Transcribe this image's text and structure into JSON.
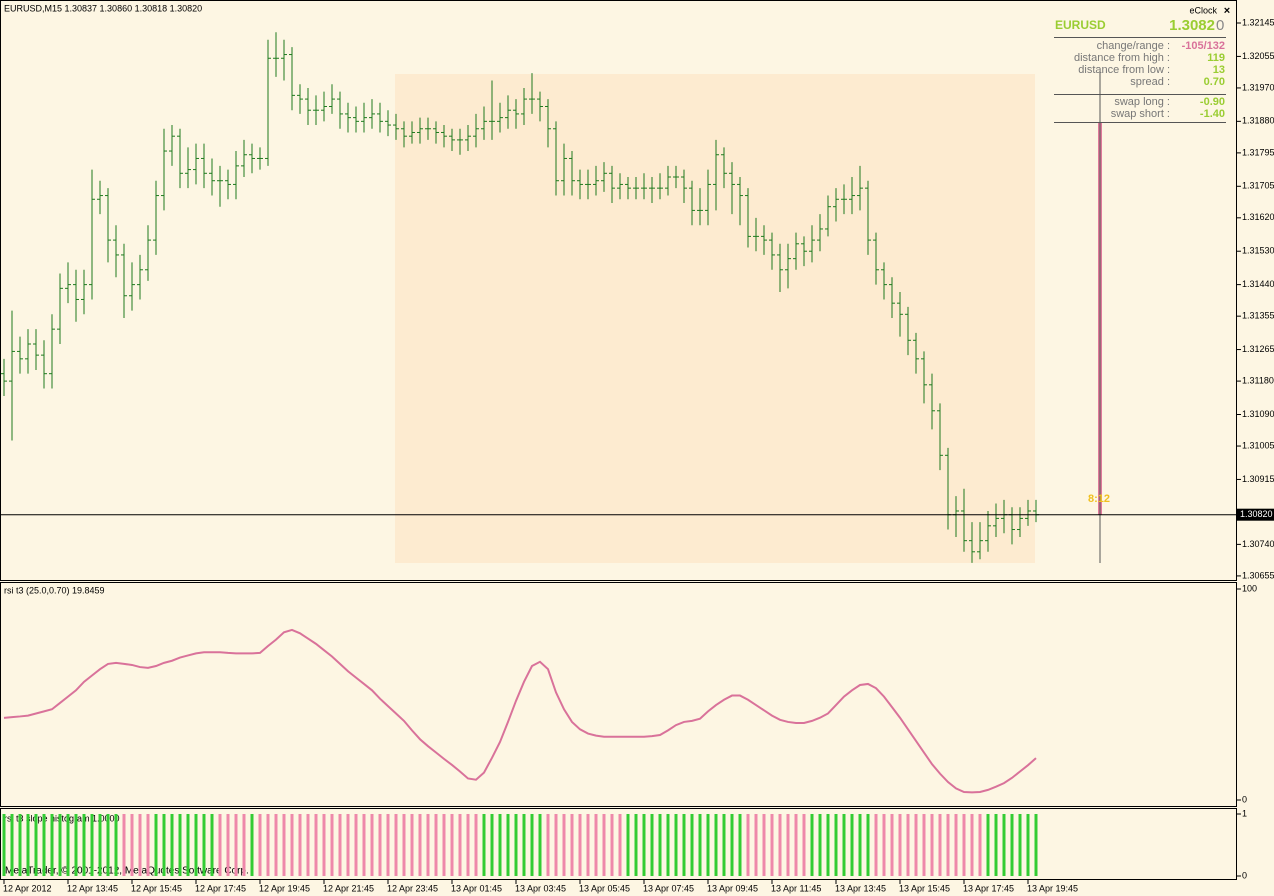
{
  "chart_data": [
    {
      "type": "ohlc",
      "title": "EURUSD,M15  1.30837 1.30860 1.30818 1.30820",
      "color": "#1e7a1e",
      "categories": [
        "12 Apr 2012",
        null,
        null,
        null,
        null,
        null,
        null,
        null,
        "12 Apr 13:45",
        null,
        null,
        null,
        null,
        null,
        null,
        null,
        "12 Apr 15:45",
        null,
        null,
        null,
        null,
        null,
        null,
        null,
        "12 Apr 17:45",
        null,
        null,
        null,
        null,
        null,
        null,
        null,
        "12 Apr 19:45",
        null,
        null,
        null,
        null,
        null,
        null,
        null,
        "12 Apr 21:45",
        null,
        null,
        null,
        null,
        null,
        null,
        null,
        "12 Apr 23:45",
        null,
        null,
        null,
        null,
        null,
        null,
        null,
        "13 Apr 01:45",
        null,
        null,
        null,
        null,
        null,
        null,
        null,
        "13 Apr 03:45",
        null,
        null,
        null,
        null,
        null,
        null,
        null,
        "13 Apr 05:45",
        null,
        null,
        null,
        null,
        null,
        null,
        null,
        "13 Apr 07:45",
        null,
        null,
        null,
        null,
        null,
        null,
        null,
        "13 Apr 09:45",
        null,
        null,
        null,
        null,
        null,
        null,
        null,
        "13 Apr 11:45",
        null,
        null,
        null,
        null,
        null,
        null,
        null,
        "13 Apr 13:45",
        null,
        null,
        null,
        null,
        null,
        null,
        null,
        "13 Apr 15:45",
        null,
        null,
        null,
        null,
        null,
        null,
        null,
        "13 Apr 17:45",
        null,
        null,
        null,
        null,
        null,
        null,
        null,
        "13 Apr 19:45",
        null
      ],
      "open": [
        1.312,
        1.3118,
        1.3126,
        1.3124,
        1.3128,
        1.3125,
        1.312,
        1.3132,
        1.3143,
        1.3144,
        1.314,
        1.3144,
        1.3167,
        1.3168,
        1.3156,
        1.3152,
        1.3141,
        1.3144,
        1.3148,
        1.3156,
        1.3168,
        1.318,
        1.3184,
        1.3174,
        1.3175,
        1.3178,
        1.3174,
        1.3172,
        1.3172,
        1.3171,
        1.3176,
        1.3179,
        1.3178,
        1.3178,
        1.3205,
        1.3205,
        1.3206,
        1.3195,
        1.3194,
        1.3191,
        1.3191,
        1.3192,
        1.3194,
        1.319,
        1.3189,
        1.3188,
        1.3189,
        1.319,
        1.3188,
        1.3187,
        1.3186,
        1.3184,
        1.3185,
        1.3186,
        1.3186,
        1.3185,
        1.3184,
        1.3183,
        1.3183,
        1.3184,
        1.3186,
        1.3188,
        1.3188,
        1.3189,
        1.3191,
        1.319,
        1.3194,
        1.3194,
        1.3192,
        1.3186,
        1.3172,
        1.3178,
        1.3172,
        1.3171,
        1.3171,
        1.3172,
        1.3174,
        1.317,
        1.3171,
        1.317,
        1.317,
        1.317,
        1.317,
        1.317,
        1.3173,
        1.3173,
        1.317,
        1.3164,
        1.3164,
        1.3171,
        1.3179,
        1.3174,
        1.3171,
        1.3168,
        1.3157,
        1.3157,
        1.3156,
        1.3152,
        1.3148,
        1.3151,
        1.3155,
        1.3153,
        1.3156,
        1.3159,
        1.3165,
        1.3167,
        1.3167,
        1.3168,
        1.317,
        1.3156,
        1.3148,
        1.3144,
        1.3139,
        1.3136,
        1.3129,
        1.3124,
        1.3117,
        1.311,
        1.3098,
        1.3082,
        1.3083,
        1.3075,
        1.3072,
        1.3075,
        1.3079,
        1.3081,
        1.3082,
        1.3078,
        1.3081,
        1.3083
      ],
      "high": [
        1.3124,
        1.3137,
        1.313,
        1.3132,
        1.3132,
        1.3129,
        1.3136,
        1.3147,
        1.315,
        1.3148,
        1.3148,
        1.3175,
        1.3172,
        1.317,
        1.316,
        1.3155,
        1.315,
        1.3152,
        1.316,
        1.3172,
        1.3186,
        1.3187,
        1.3186,
        1.3181,
        1.3182,
        1.3182,
        1.3178,
        1.3176,
        1.3175,
        1.318,
        1.3183,
        1.3182,
        1.3181,
        1.321,
        1.3212,
        1.321,
        1.3208,
        1.3198,
        1.3197,
        1.3195,
        1.3196,
        1.3198,
        1.3196,
        1.3193,
        1.3192,
        1.3193,
        1.3194,
        1.3193,
        1.3191,
        1.319,
        1.3188,
        1.3188,
        1.3189,
        1.3189,
        1.3188,
        1.3187,
        1.3186,
        1.3186,
        1.3187,
        1.319,
        1.3192,
        1.3199,
        1.3193,
        1.3195,
        1.3194,
        1.3197,
        1.3201,
        1.3196,
        1.3194,
        1.3188,
        1.3182,
        1.318,
        1.3175,
        1.3175,
        1.3176,
        1.3177,
        1.3176,
        1.3174,
        1.3173,
        1.3173,
        1.3174,
        1.3173,
        1.3174,
        1.3176,
        1.3176,
        1.3175,
        1.3172,
        1.317,
        1.3175,
        1.3183,
        1.3181,
        1.3177,
        1.3173,
        1.317,
        1.3162,
        1.316,
        1.3158,
        1.3155,
        1.3155,
        1.3158,
        1.3157,
        1.316,
        1.3163,
        1.3168,
        1.317,
        1.3171,
        1.3173,
        1.3176,
        1.3172,
        1.3158,
        1.315,
        1.3146,
        1.3142,
        1.3138,
        1.3131,
        1.3126,
        1.312,
        1.3112,
        1.31,
        1.3087,
        1.3089,
        1.308,
        1.308,
        1.3083,
        1.3085,
        1.3086,
        1.3084,
        1.3084,
        1.3086,
        1.3086
      ],
      "low": [
        1.3114,
        1.3102,
        1.312,
        1.312,
        1.3121,
        1.3116,
        1.3116,
        1.3128,
        1.3139,
        1.3134,
        1.3136,
        1.314,
        1.3163,
        1.315,
        1.3146,
        1.3135,
        1.3137,
        1.314,
        1.3145,
        1.3152,
        1.3164,
        1.3176,
        1.317,
        1.317,
        1.3171,
        1.317,
        1.3168,
        1.3165,
        1.3167,
        1.3167,
        1.3173,
        1.3174,
        1.3175,
        1.3176,
        1.32,
        1.3199,
        1.3191,
        1.319,
        1.3187,
        1.3187,
        1.3188,
        1.319,
        1.3186,
        1.3185,
        1.3185,
        1.3185,
        1.3186,
        1.3185,
        1.3184,
        1.3183,
        1.3181,
        1.3182,
        1.3182,
        1.3183,
        1.3182,
        1.3181,
        1.318,
        1.3179,
        1.318,
        1.3181,
        1.3183,
        1.3183,
        1.3185,
        1.3186,
        1.3186,
        1.3187,
        1.319,
        1.3188,
        1.3181,
        1.3168,
        1.3168,
        1.3168,
        1.3167,
        1.3167,
        1.3168,
        1.3169,
        1.3166,
        1.3167,
        1.3167,
        1.3167,
        1.3167,
        1.3166,
        1.3167,
        1.3168,
        1.317,
        1.3166,
        1.316,
        1.316,
        1.316,
        1.3164,
        1.317,
        1.3163,
        1.316,
        1.3154,
        1.3153,
        1.3152,
        1.3148,
        1.3142,
        1.3143,
        1.3148,
        1.3149,
        1.315,
        1.3153,
        1.3157,
        1.3161,
        1.3163,
        1.3163,
        1.3164,
        1.3152,
        1.3144,
        1.314,
        1.3135,
        1.313,
        1.3125,
        1.312,
        1.3112,
        1.3105,
        1.3094,
        1.3078,
        1.3076,
        1.3072,
        1.3069,
        1.307,
        1.3072,
        1.3076,
        1.3077,
        1.3074,
        1.3076,
        1.3079,
        1.308
      ],
      "close": [
        1.3118,
        1.3126,
        1.3124,
        1.3128,
        1.3125,
        1.312,
        1.3132,
        1.3143,
        1.3144,
        1.314,
        1.3144,
        1.3167,
        1.3168,
        1.3156,
        1.3152,
        1.3141,
        1.3144,
        1.3148,
        1.3156,
        1.3168,
        1.318,
        1.3184,
        1.3174,
        1.3175,
        1.3178,
        1.3174,
        1.3172,
        1.3172,
        1.3171,
        1.3176,
        1.3179,
        1.3178,
        1.3178,
        1.3205,
        1.3205,
        1.3206,
        1.3195,
        1.3194,
        1.3191,
        1.3191,
        1.3192,
        1.3194,
        1.319,
        1.3189,
        1.3188,
        1.3189,
        1.319,
        1.3188,
        1.3187,
        1.3186,
        1.3184,
        1.3185,
        1.3186,
        1.3186,
        1.3185,
        1.3184,
        1.3183,
        1.3183,
        1.3184,
        1.3186,
        1.3188,
        1.3188,
        1.3189,
        1.3191,
        1.319,
        1.3194,
        1.3194,
        1.3192,
        1.3186,
        1.3172,
        1.3178,
        1.3172,
        1.3171,
        1.3171,
        1.3172,
        1.3174,
        1.317,
        1.3171,
        1.317,
        1.317,
        1.317,
        1.317,
        1.317,
        1.3173,
        1.3173,
        1.317,
        1.3164,
        1.3164,
        1.3171,
        1.3179,
        1.3174,
        1.3171,
        1.3168,
        1.3157,
        1.3157,
        1.3156,
        1.3152,
        1.3148,
        1.3151,
        1.3155,
        1.3153,
        1.3156,
        1.3159,
        1.3165,
        1.3167,
        1.3167,
        1.3168,
        1.317,
        1.3156,
        1.3148,
        1.3144,
        1.3139,
        1.3136,
        1.3129,
        1.3124,
        1.3117,
        1.311,
        1.3098,
        1.3082,
        1.3083,
        1.3075,
        1.3072,
        1.3075,
        1.3079,
        1.3081,
        1.3082,
        1.3078,
        1.3081,
        1.3083,
        1.3082
      ],
      "ylim": [
        1.30644,
        1.32207
      ],
      "yticks": [
        1.32145,
        1.32055,
        {
          "value": 1.3197,
          "label": "1.31970"
        },
        {
          "value": 1.3188,
          "label": "1.31880"
        },
        1.31795,
        1.31705,
        {
          "value": 1.3162,
          "label": "1.31620"
        },
        {
          "value": 1.3153,
          "label": "1.31530"
        },
        {
          "value": 1.3144,
          "label": "1.31440"
        },
        1.31355,
        1.31265,
        {
          "value": 1.3118,
          "label": "1.31180"
        },
        {
          "value": 1.3109,
          "label": "1.31090"
        },
        1.31005,
        1.30915,
        {
          "value": 1.3074,
          "label": "1.30740"
        },
        1.30655
      ],
      "current_price": {
        "value": 1.3082,
        "label": "1.30820"
      }
    },
    {
      "type": "line",
      "title": "rsi t3 (25.0,0.70) 19.8459",
      "color": "#d9729a",
      "values": [
        38.9,
        39.3,
        39.6,
        40,
        41,
        42,
        43,
        46,
        49,
        52,
        56,
        59,
        62,
        64.5,
        65,
        64.5,
        64,
        63,
        62.6,
        63.5,
        65,
        66,
        67.5,
        68.5,
        69.5,
        70,
        70,
        70,
        69.7,
        69.5,
        69.5,
        69.5,
        69.7,
        73,
        76,
        79.5,
        80.6,
        79,
        76.5,
        74,
        71,
        68,
        64.5,
        61,
        58,
        55,
        52,
        48,
        44.5,
        41,
        37.5,
        33,
        28.8,
        25.5,
        22.5,
        19.5,
        16.6,
        13.5,
        10.2,
        9.6,
        13,
        20,
        27.5,
        37,
        47,
        56,
        63.5,
        65.5,
        62,
        51,
        43,
        37,
        33.5,
        31.5,
        30.5,
        30,
        30,
        30,
        30,
        30,
        30,
        30.3,
        30.8,
        33,
        35.5,
        37,
        37.5,
        38.5,
        42,
        45,
        47.5,
        49.5,
        49.5,
        47.5,
        45,
        42.5,
        40,
        38,
        37,
        36.5,
        36.5,
        37.5,
        39,
        41,
        45,
        49,
        52,
        54.5,
        55,
        53,
        49,
        44,
        39,
        33.5,
        28,
        22.5,
        17,
        12.5,
        8.5,
        5.5,
        3.8,
        3.6,
        3.8,
        4.8,
        6.3,
        8,
        10.5,
        13.5,
        16.5,
        19.8459
      ],
      "ylim": [
        0,
        100
      ],
      "yticks": [
        0,
        100
      ]
    },
    {
      "type": "bar",
      "title": "rsi t3 slope histogram 1.0000",
      "values": [
        1,
        1,
        1,
        1,
        1,
        1,
        1,
        1,
        1,
        1,
        1,
        1,
        1,
        1,
        1,
        1,
        1,
        1,
        1,
        1,
        1,
        1,
        1,
        1,
        1,
        1,
        1,
        1,
        1,
        1,
        1,
        1,
        1,
        1,
        1,
        1,
        1,
        1,
        1,
        1,
        1,
        1,
        1,
        1,
        1,
        1,
        1,
        1,
        1,
        1,
        1,
        1,
        1,
        1,
        1,
        1,
        1,
        1,
        1,
        1,
        1,
        1,
        1,
        1,
        1,
        1,
        1,
        1,
        1,
        1,
        1,
        1,
        1,
        1,
        1,
        1,
        1,
        1,
        1,
        1,
        1,
        1,
        1,
        1,
        1,
        1,
        1,
        1,
        1,
        1,
        1,
        1,
        1,
        1,
        1,
        1,
        1,
        1,
        1,
        1,
        1,
        1,
        1,
        1,
        1,
        1,
        1,
        1,
        1,
        1,
        1,
        1,
        1,
        1,
        1,
        1,
        1,
        1,
        1,
        1,
        1,
        1,
        1,
        1,
        1,
        1,
        1,
        1,
        1,
        1
      ],
      "colors": [
        "#3c3",
        "#3c3",
        "#3c3",
        "#3c3",
        "#3c3",
        "#3c3",
        "#3c3",
        "#3c3",
        "#3c3",
        "#3c3",
        "#3c3",
        "#3c3",
        "#3c3",
        "#3c3",
        "#3c3",
        "#e8a",
        "#e8a",
        "#e8a",
        "#e8a",
        "#3c3",
        "#3c3",
        "#3c3",
        "#3c3",
        "#3c3",
        "#3c3",
        "#3c3",
        "#3c3",
        "#e8a",
        "#e8a",
        "#e8a",
        "#e8a",
        "#3c3",
        "#e8a",
        "#e8a",
        "#e8a",
        "#e8a",
        "#e8a",
        "#e8a",
        "#e8a",
        "#e8a",
        "#e8a",
        "#e8a",
        "#e8a",
        "#e8a",
        "#e8a",
        "#e8a",
        "#e8a",
        "#e8a",
        "#e8a",
        "#e8a",
        "#e8a",
        "#e8a",
        "#e8a",
        "#e8a",
        "#e8a",
        "#e8a",
        "#e8a",
        "#e8a",
        "#e8a",
        "#e8a",
        "#3c3",
        "#3c3",
        "#3c3",
        "#3c3",
        "#3c3",
        "#3c3",
        "#3c3",
        "#3c3",
        "#e8a",
        "#e8a",
        "#e8a",
        "#e8a",
        "#e8a",
        "#e8a",
        "#e8a",
        "#e8a",
        "#e8a",
        "#e8a",
        "#3c3",
        "#3c3",
        "#3c3",
        "#3c3",
        "#3c3",
        "#3c3",
        "#3c3",
        "#3c3",
        "#3c3",
        "#3c3",
        "#3c3",
        "#3c3",
        "#3c3",
        "#3c3",
        "#3c3",
        "#e8a",
        "#e8a",
        "#e8a",
        "#e8a",
        "#e8a",
        "#e8a",
        "#e8a",
        "#e8a",
        "#3c3",
        "#3c3",
        "#3c3",
        "#3c3",
        "#3c3",
        "#3c3",
        "#3c3",
        "#3c3",
        "#e8a",
        "#e8a",
        "#e8a",
        "#e8a",
        "#e8a",
        "#e8a",
        "#e8a",
        "#e8a",
        "#e8a",
        "#e8a",
        "#e8a",
        "#e8a",
        "#e8a",
        "#e8a",
        "#3c3",
        "#3c3",
        "#3c3",
        "#3c3",
        "#3c3",
        "#3c3",
        "#3c3"
      ],
      "ylim": [
        0,
        1
      ],
      "yticks": [
        0,
        1
      ]
    }
  ],
  "eclock": {
    "title": "eClock",
    "close": "×",
    "symbol": "EURUSD",
    "bid_main": "1.3082",
    "bid_last": "0",
    "rows": [
      [
        "change/range :",
        "-105/132"
      ],
      [
        "distance from high :",
        "119"
      ],
      [
        "distance from low :",
        "13"
      ],
      [
        "spread :",
        "0.70"
      ],
      [
        "swap long :",
        "-0.90"
      ],
      [
        "swap short :",
        "-1.40"
      ]
    ],
    "countdown": "8:12"
  },
  "footer": "MetaTrader, © 2001-2012, MetaQuotes Software Corp."
}
